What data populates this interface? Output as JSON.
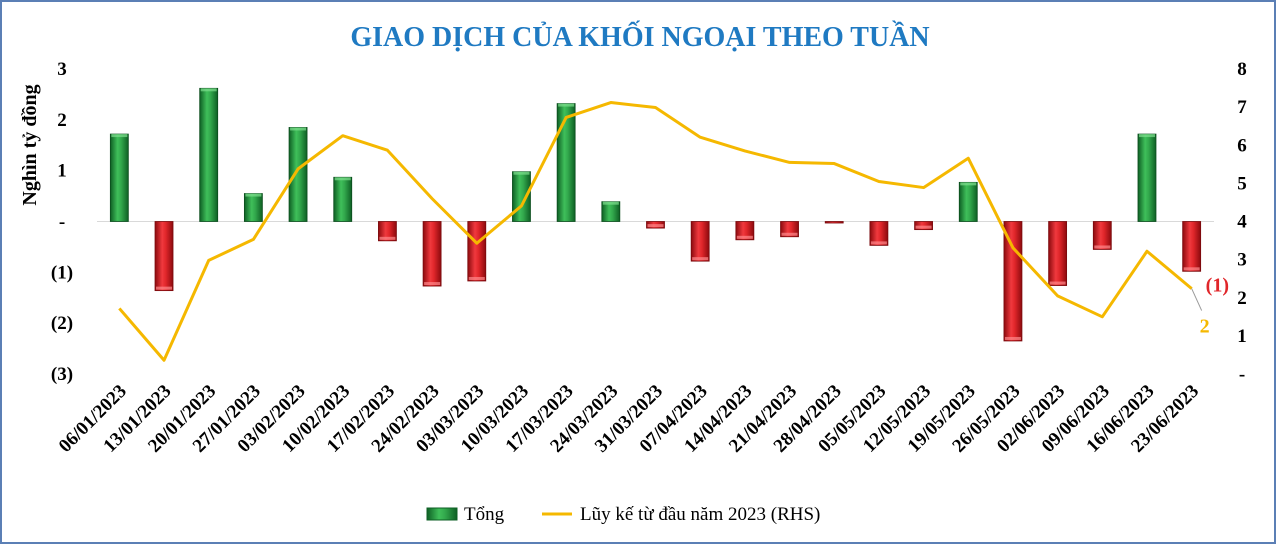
{
  "chart_data": {
    "type": "bar",
    "title": "GIAO DỊCH CỦA KHỐI NGOẠI THEO TUẦN",
    "ylabel": "Nghìn tỷ đồng",
    "ylim": [
      -3,
      3
    ],
    "y2lim": [
      0,
      8
    ],
    "y_ticks": [
      "3",
      "2",
      "1",
      "-",
      "(1)",
      "(2)",
      "(3)"
    ],
    "y2_ticks": [
      "8",
      "7",
      "6",
      "5",
      "4",
      "3",
      "2",
      "1",
      "-"
    ],
    "categories": [
      "06/01/2023",
      "13/01/2023",
      "20/01/2023",
      "27/01/2023",
      "03/02/2023",
      "10/02/2023",
      "17/02/2023",
      "24/02/2023",
      "03/03/2023",
      "10/03/2023",
      "17/03/2023",
      "24/03/2023",
      "31/03/2023",
      "07/04/2023",
      "14/04/2023",
      "21/04/2023",
      "28/04/2023",
      "05/05/2023",
      "12/05/2023",
      "19/05/2023",
      "26/05/2023",
      "02/06/2023",
      "09/06/2023",
      "16/06/2023",
      "23/06/2023"
    ],
    "series": [
      {
        "name": "Tổng",
        "axis": "left",
        "kind": "bar",
        "values": [
          1.72,
          -1.36,
          2.62,
          0.55,
          1.85,
          0.87,
          -0.38,
          -1.27,
          -1.17,
          0.98,
          2.32,
          0.39,
          -0.13,
          -0.78,
          -0.36,
          -0.3,
          -0.03,
          -0.47,
          -0.16,
          0.77,
          -2.35,
          -1.26,
          -0.55,
          1.72,
          -0.98
        ]
      },
      {
        "name": "Lũy kế từ đầu năm 2023 (RHS)",
        "axis": "right",
        "kind": "line",
        "color": "#f5b800",
        "values": [
          1.72,
          0.36,
          2.98,
          3.53,
          5.38,
          6.25,
          5.87,
          4.6,
          3.43,
          4.41,
          6.73,
          7.12,
          6.99,
          6.21,
          5.85,
          5.55,
          5.52,
          5.05,
          4.89,
          5.66,
          3.31,
          2.05,
          1.5,
          3.22,
          2.24
        ]
      }
    ],
    "annotations": {
      "last_bar": "(1)",
      "last_line": "2"
    },
    "colors": {
      "positive": "#1e8b3a",
      "negative": "#d9161d",
      "line": "#f5b800",
      "title": "#1f7ac2"
    },
    "legend": "bottom",
    "grid": false
  }
}
